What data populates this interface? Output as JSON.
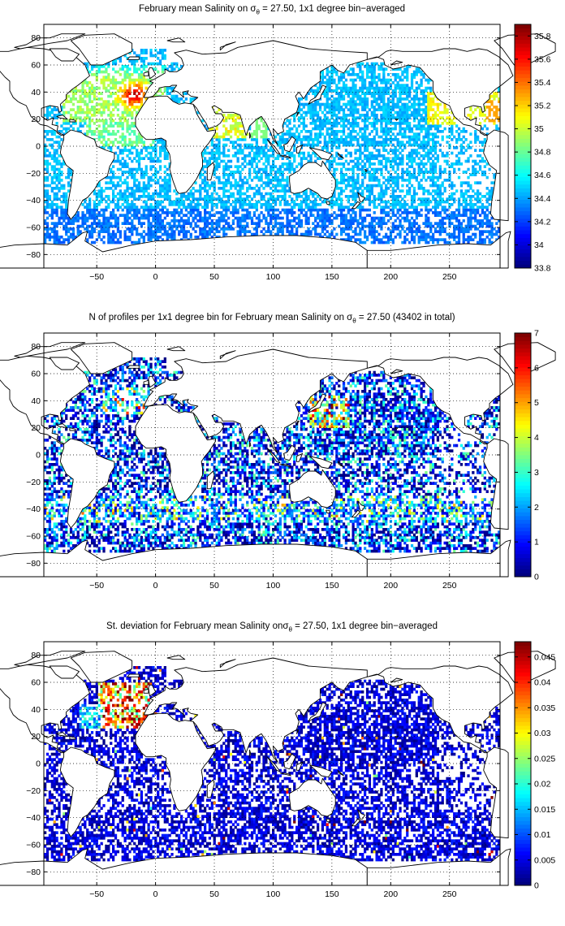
{
  "chart_data": [
    {
      "type": "heatmap",
      "title": {
        "pre": "February mean Salinity on ",
        "sigma": "σ",
        "sub": "θ",
        "post": " = 27.50, 1x1 degree bin−averaged"
      },
      "xlim": [
        -95,
        293
      ],
      "ylim": [
        -90,
        90
      ],
      "xticks": [
        -50,
        0,
        50,
        100,
        150,
        200,
        250
      ],
      "yticks": [
        -80,
        -60,
        -40,
        -20,
        0,
        20,
        40,
        60,
        80
      ],
      "grid": true,
      "colorbar": {
        "min": 33.8,
        "max": 35.9,
        "ticks": [
          33.8,
          34,
          34.2,
          34.4,
          34.6,
          34.8,
          35,
          35.2,
          35.4,
          35.6,
          35.8
        ],
        "tick_labels": [
          "33.8",
          "34",
          "34.2",
          "34.4",
          "34.6",
          "34.8",
          "35",
          "35.2",
          "35.4",
          "35.6",
          "35.8"
        ]
      },
      "field": "salinity"
    },
    {
      "type": "heatmap",
      "title": {
        "pre": "N of profiles per 1x1 degree bin for February mean Salinity on ",
        "sigma": "σ",
        "sub": "θ",
        "post": " = 27.50 (43402 in total)"
      },
      "xlim": [
        -95,
        293
      ],
      "ylim": [
        -90,
        90
      ],
      "xticks": [
        -50,
        0,
        50,
        100,
        150,
        200,
        250
      ],
      "yticks": [
        -80,
        -60,
        -40,
        -20,
        0,
        20,
        40,
        60,
        80
      ],
      "grid": true,
      "colorbar": {
        "min": 0,
        "max": 7,
        "ticks": [
          0,
          1,
          2,
          3,
          4,
          5,
          6,
          7
        ],
        "tick_labels": [
          "0",
          "1",
          "2",
          "3",
          "4",
          "5",
          "6",
          "7"
        ]
      },
      "field": "count"
    },
    {
      "type": "heatmap",
      "title": {
        "pre": "St. deviation for February mean Salinity on",
        "sigma": "σ",
        "sub": "θ",
        "post": " = 27.50, 1x1 degree bin−averaged"
      },
      "xlim": [
        -95,
        293
      ],
      "ylim": [
        -90,
        90
      ],
      "xticks": [
        -50,
        0,
        50,
        100,
        150,
        200,
        250
      ],
      "yticks": [
        -80,
        -60,
        -40,
        -20,
        0,
        20,
        40,
        60,
        80
      ],
      "grid": true,
      "colorbar": {
        "min": 0,
        "max": 0.048,
        "ticks": [
          0,
          0.005,
          0.01,
          0.015,
          0.02,
          0.025,
          0.03,
          0.035,
          0.04,
          0.045
        ],
        "tick_labels": [
          "0",
          "0.005",
          "0.01",
          "0.015",
          "0.02",
          "0.025",
          "0.03",
          "0.035",
          "0.04",
          "0.045"
        ]
      },
      "field": "std"
    }
  ],
  "colormap": "jet"
}
